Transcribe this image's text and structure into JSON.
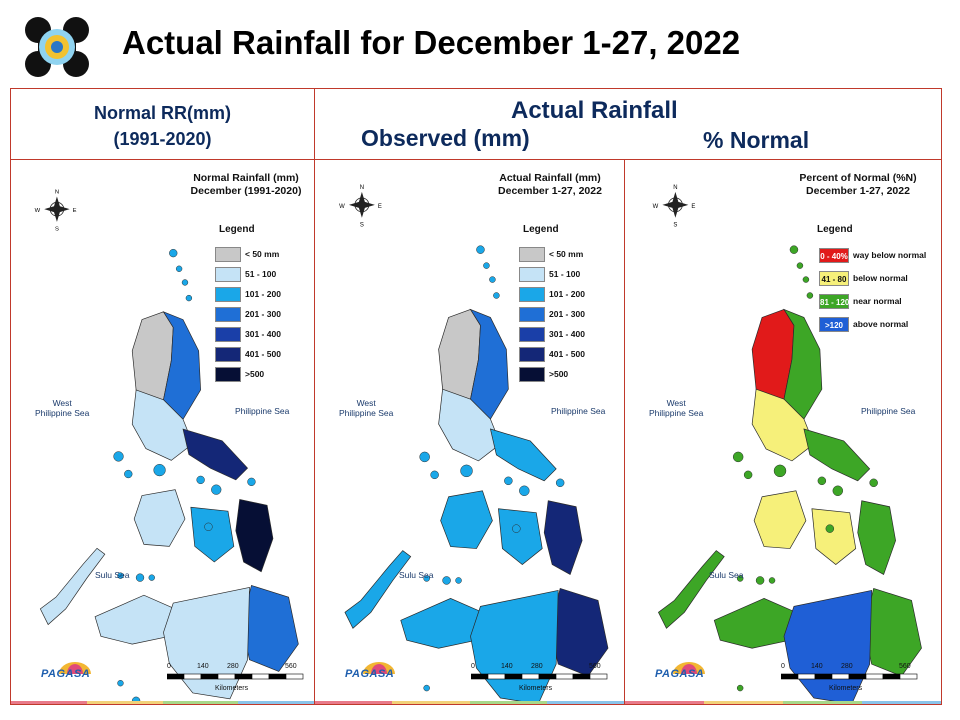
{
  "title": "Actual Rainfall for December 1-27, 2022",
  "header": {
    "left_line1": "Normal RR(mm)",
    "left_line2": "(1991-2020)",
    "actual": "Actual Rainfall",
    "observed": "Observed (mm)",
    "pct": "% Normal"
  },
  "panels": [
    {
      "title_line1": "Normal Rainfall (mm)",
      "title_line2": "December (1991-2020)",
      "legend_title": "Legend",
      "legend": [
        {
          "label": "< 50 mm",
          "color": "#c8c8c8"
        },
        {
          "label": "51 - 100",
          "color": "#c5e3f6"
        },
        {
          "label": "101 - 200",
          "color": "#1aa7e8"
        },
        {
          "label": "201 - 300",
          "color": "#1f6fd6"
        },
        {
          "label": "301 - 400",
          "color": "#1a3fa8"
        },
        {
          "label": "401 - 500",
          "color": "#142777"
        },
        {
          "label": ">500",
          "color": "#060f35"
        }
      ],
      "sea_west": "West\nPhilippine Sea",
      "sea_east": "Philippine Sea",
      "sea_sulu": "Sulu Sea"
    },
    {
      "title_line1": "Actual Rainfall (mm)",
      "title_line2": "December 1-27, 2022",
      "legend_title": "Legend",
      "legend": [
        {
          "label": "< 50 mm",
          "color": "#c8c8c8"
        },
        {
          "label": "51 - 100",
          "color": "#c5e3f6"
        },
        {
          "label": "101 - 200",
          "color": "#1aa7e8"
        },
        {
          "label": "201 - 300",
          "color": "#1f6fd6"
        },
        {
          "label": "301 - 400",
          "color": "#1a3fa8"
        },
        {
          "label": "401 - 500",
          "color": "#142777"
        },
        {
          "label": ">500",
          "color": "#060f35"
        }
      ],
      "sea_west": "West\nPhilippine Sea",
      "sea_east": "Philippine Sea",
      "sea_sulu": "Sulu Sea"
    },
    {
      "title_line1": "Percent of Normal (%N)",
      "title_line2": "December 1-27, 2022",
      "legend_title": "Legend",
      "legend": [
        {
          "range": "0 - 40%",
          "label": "way below normal",
          "color": "#e11a1a"
        },
        {
          "range": "41 - 80",
          "label": "below normal",
          "color": "#f6f07a"
        },
        {
          "range": "81 - 120",
          "label": "near normal",
          "color": "#3da626"
        },
        {
          "range": ">120",
          "label": "above normal",
          "color": "#1f5fd6"
        }
      ],
      "sea_west": "West\nPhilippine Sea",
      "sea_east": "Philippine Sea",
      "sea_sulu": "Sulu Sea"
    }
  ],
  "scale": {
    "ticks": [
      "0",
      "140",
      "280",
      "560"
    ],
    "unit": "Kilometers"
  },
  "compass": {
    "n": "N",
    "s": "S",
    "e": "E",
    "w": "W"
  },
  "pagasa_logo_text": "PAGASA",
  "colors": {
    "frame": "#c0392b",
    "heading": "#0d2a5c"
  }
}
